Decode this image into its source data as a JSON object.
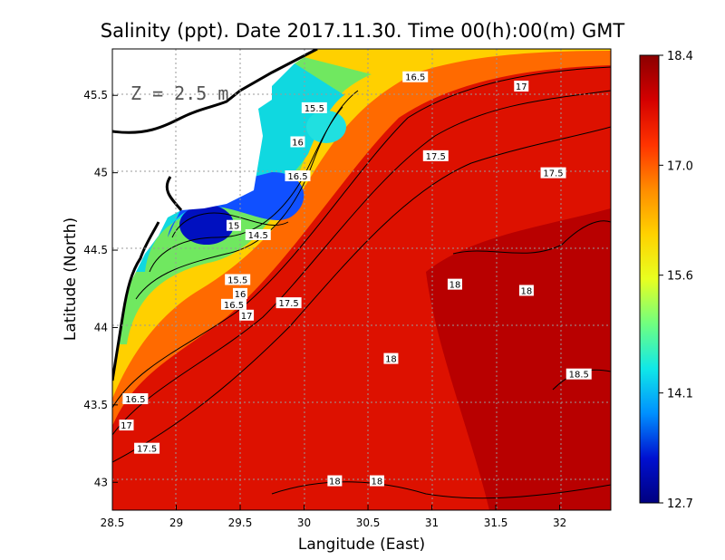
{
  "chart_data": {
    "type": "heatmap",
    "title": "Salinity (ppt). Date 2017.11.30. Time 00(h):00(m) GMT",
    "xlabel": "Langitude (East)",
    "ylabel": "Latitude (North)",
    "annotation": "Z = 2.5 m",
    "xlim": [
      28.5,
      32.4
    ],
    "ylim": [
      42.82,
      45.8
    ],
    "x_ticks": [
      "28.5",
      "29",
      "29.5",
      "30",
      "30.5",
      "31",
      "31.5",
      "32"
    ],
    "y_ticks": [
      "43",
      "43.5",
      "44",
      "44.5",
      "45",
      "45.5"
    ],
    "grid": true,
    "colorbar": {
      "min": 12.7,
      "max": 18.4,
      "ticks": [
        "18.4",
        "17.0",
        "15.6",
        "14.1",
        "12.7"
      ],
      "colors": [
        "#8b0000",
        "#d40000",
        "#ff3300",
        "#ff8c00",
        "#ffd200",
        "#e8ff20",
        "#70ff80",
        "#10e8e8",
        "#0090ff",
        "#0010d0",
        "#000080"
      ]
    },
    "contour_labels": [
      {
        "text": "16.5",
        "lon": 30.87,
        "lat": 45.62
      },
      {
        "text": "17",
        "lon": 31.7,
        "lat": 45.56
      },
      {
        "text": "15.5",
        "lon": 30.08,
        "lat": 45.42
      },
      {
        "text": "16",
        "lon": 29.95,
        "lat": 45.2
      },
      {
        "text": "16.5",
        "lon": 29.95,
        "lat": 44.98
      },
      {
        "text": "17.5",
        "lon": 31.03,
        "lat": 45.11
      },
      {
        "text": "17.5",
        "lon": 31.95,
        "lat": 45.0
      },
      {
        "text": "15",
        "lon": 29.45,
        "lat": 44.66
      },
      {
        "text": "14.5",
        "lon": 29.64,
        "lat": 44.6
      },
      {
        "text": "15.5",
        "lon": 29.48,
        "lat": 44.31
      },
      {
        "text": "16",
        "lon": 29.5,
        "lat": 44.22
      },
      {
        "text": "16.5",
        "lon": 29.45,
        "lat": 44.15
      },
      {
        "text": "17",
        "lon": 29.55,
        "lat": 44.08
      },
      {
        "text": "17.5",
        "lon": 29.88,
        "lat": 44.16
      },
      {
        "text": "18",
        "lon": 31.18,
        "lat": 44.28
      },
      {
        "text": "18",
        "lon": 31.74,
        "lat": 44.24
      },
      {
        "text": "18",
        "lon": 30.68,
        "lat": 43.8
      },
      {
        "text": "18.5",
        "lon": 32.15,
        "lat": 43.7
      },
      {
        "text": "16.5",
        "lon": 28.68,
        "lat": 43.54
      },
      {
        "text": "17",
        "lon": 28.61,
        "lat": 43.37
      },
      {
        "text": "17.5",
        "lon": 28.77,
        "lat": 43.22
      },
      {
        "text": "18",
        "lon": 30.24,
        "lat": 43.01
      },
      {
        "text": "18",
        "lon": 30.57,
        "lat": 43.01
      }
    ]
  }
}
